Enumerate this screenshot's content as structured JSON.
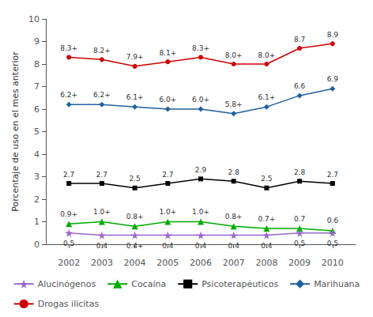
{
  "chart_data": {
    "type": "line",
    "x": [
      2002,
      2003,
      2004,
      2005,
      2006,
      2007,
      2008,
      2009,
      2010
    ],
    "xlim": [
      2001.3,
      2010.7
    ],
    "xticks": [
      2002,
      2003,
      2004,
      2005,
      2006,
      2007,
      2008,
      2009,
      2010
    ],
    "ylabel": "Porcentaje de uso en el mes anterior",
    "ylim": [
      0,
      10
    ],
    "yticks": [
      0,
      1,
      2,
      3,
      4,
      5,
      6,
      7,
      8,
      9,
      10
    ],
    "grid": false,
    "legend": "bottom",
    "data_labels": true,
    "series": [
      {
        "name": "Drogas ilicitas",
        "color": "#cc0000",
        "marker": "circle",
        "values": [
          8.3,
          8.2,
          7.9,
          8.1,
          8.3,
          8.0,
          8.0,
          8.7,
          8.9
        ],
        "value_labels": [
          "8.3+",
          "8.2+",
          "7.9+",
          "8.1+",
          "8.3+",
          "8.0+",
          "8.0+",
          "8.7",
          "8.9"
        ]
      },
      {
        "name": "Marihuana",
        "color": "#2060a0",
        "marker": "diamond",
        "values": [
          6.2,
          6.2,
          6.1,
          6.0,
          6.0,
          5.8,
          6.1,
          6.6,
          6.9
        ],
        "value_labels": [
          "6.2+",
          "6.2+",
          "6.1+",
          "6.0+",
          "6.0+",
          "5.8+",
          "6.1+",
          "6.6",
          "6.9"
        ]
      },
      {
        "name": "Psicoterapéuticos",
        "color": "#000000",
        "marker": "square",
        "values": [
          2.7,
          2.7,
          2.5,
          2.7,
          2.9,
          2.8,
          2.5,
          2.8,
          2.7
        ],
        "value_labels": [
          "2.7",
          "2.7",
          "2.5",
          "2.7",
          "2.9",
          "2.8",
          "2.5",
          "2.8",
          "2.7"
        ]
      },
      {
        "name": "Cocaína",
        "color": "#00aa00",
        "marker": "triangle",
        "values": [
          0.9,
          1.0,
          0.8,
          1.0,
          1.0,
          0.8,
          0.7,
          0.7,
          0.6
        ],
        "value_labels": [
          "0.9+",
          "1.0+",
          "0.8+",
          "1.0+",
          "1.0+",
          "0.8+",
          "0.7+",
          "0.7",
          "0.6"
        ]
      },
      {
        "name": "Alucinógenos",
        "color": "#9966cc",
        "marker": "star",
        "values": [
          0.5,
          0.4,
          0.4,
          0.4,
          0.4,
          0.4,
          0.4,
          0.5,
          0.5
        ],
        "value_labels": [
          "0.5",
          "0.4",
          "0.4+",
          "0.4",
          "0.4",
          "0.4",
          "0.4",
          "0.5",
          "0.5"
        ]
      }
    ]
  }
}
